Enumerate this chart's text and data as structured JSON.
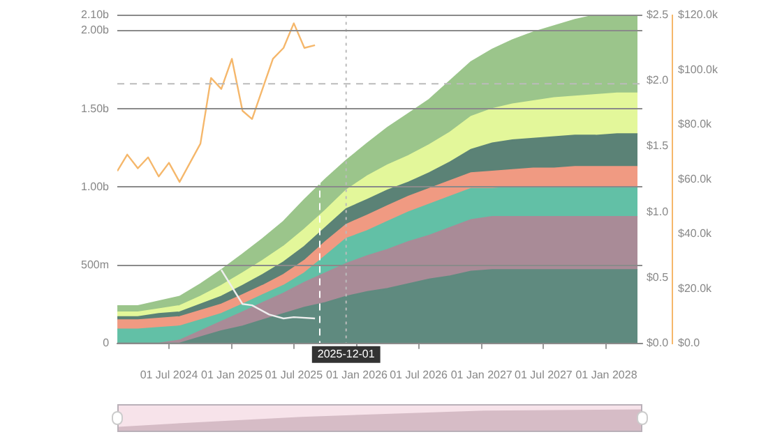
{
  "chart_data": {
    "type": "area",
    "stacked": true,
    "x": [
      "2024-02",
      "2024-04",
      "2024-06",
      "2024-08",
      "2024-10",
      "2024-12",
      "2025-02",
      "2025-04",
      "2025-06",
      "2025-08",
      "2025-10",
      "2025-12",
      "2026-02",
      "2026-04",
      "2026-06",
      "2026-08",
      "2026-10",
      "2026-12",
      "2027-02",
      "2027-04",
      "2027-06",
      "2027-08",
      "2027-10",
      "2027-12",
      "2028-02",
      "2028-04"
    ],
    "series": [
      {
        "color": "#5f8a7f",
        "values": [
          0,
          0,
          0,
          0,
          40000000,
          80000000,
          110000000,
          150000000,
          190000000,
          230000000,
          260000000,
          300000000,
          330000000,
          350000000,
          380000000,
          410000000,
          430000000,
          460000000,
          470000000,
          470000000,
          470000000,
          470000000,
          470000000,
          470000000,
          470000000,
          470000000
        ]
      },
      {
        "color": "#a98b97",
        "values": [
          0,
          0,
          0,
          20000000,
          40000000,
          60000000,
          90000000,
          110000000,
          130000000,
          160000000,
          190000000,
          210000000,
          230000000,
          250000000,
          270000000,
          280000000,
          310000000,
          330000000,
          340000000,
          340000000,
          340000000,
          340000000,
          340000000,
          340000000,
          340000000,
          340000000
        ]
      },
      {
        "color": "#62c0a6",
        "values": [
          90000000,
          90000000,
          100000000,
          90000000,
          70000000,
          50000000,
          50000000,
          50000000,
          50000000,
          60000000,
          110000000,
          160000000,
          160000000,
          180000000,
          190000000,
          200000000,
          200000000,
          200000000,
          180000000,
          190000000,
          190000000,
          190000000,
          190000000,
          190000000,
          190000000,
          190000000
        ]
      },
      {
        "color": "#f09a82",
        "values": [
          60000000,
          60000000,
          60000000,
          60000000,
          60000000,
          60000000,
          60000000,
          60000000,
          70000000,
          80000000,
          90000000,
          90000000,
          100000000,
          100000000,
          100000000,
          100000000,
          100000000,
          100000000,
          110000000,
          110000000,
          120000000,
          120000000,
          130000000,
          130000000,
          130000000,
          130000000
        ]
      },
      {
        "color": "#5b8276",
        "values": [
          20000000,
          20000000,
          30000000,
          30000000,
          40000000,
          50000000,
          60000000,
          70000000,
          80000000,
          90000000,
          90000000,
          100000000,
          100000000,
          100000000,
          90000000,
          100000000,
          120000000,
          150000000,
          180000000,
          190000000,
          190000000,
          200000000,
          200000000,
          200000000,
          210000000,
          210000000
        ]
      },
      {
        "color": "#e3f79a",
        "values": [
          30000000,
          30000000,
          30000000,
          40000000,
          50000000,
          70000000,
          80000000,
          90000000,
          100000000,
          110000000,
          110000000,
          120000000,
          150000000,
          160000000,
          170000000,
          180000000,
          190000000,
          210000000,
          220000000,
          230000000,
          240000000,
          250000000,
          250000000,
          260000000,
          260000000,
          260000000
        ]
      },
      {
        "color": "#9bc58b",
        "values": [
          40000000,
          40000000,
          50000000,
          60000000,
          80000000,
          100000000,
          120000000,
          140000000,
          160000000,
          190000000,
          200000000,
          190000000,
          210000000,
          240000000,
          270000000,
          290000000,
          330000000,
          350000000,
          380000000,
          410000000,
          440000000,
          460000000,
          490000000,
          510000000,
          500000000,
          500000000
        ]
      },
      {
        "type": "line",
        "axis": "y3",
        "color": "#f5b76b",
        "x": [
          "2024-02",
          "2024-03",
          "2024-04",
          "2024-05",
          "2024-06",
          "2024-07",
          "2024-08",
          "2024-10",
          "2024-11",
          "2024-12",
          "2025-01",
          "2025-02",
          "2025-03",
          "2025-05",
          "2025-06",
          "2025-07",
          "2025-08",
          "2025-09"
        ],
        "values": [
          63000,
          69000,
          64000,
          68000,
          61000,
          66000,
          59000,
          73000,
          97000,
          93000,
          104000,
          85000,
          82000,
          104000,
          108000,
          117000,
          108000,
          109000
        ]
      },
      {
        "type": "line",
        "axis": "y2",
        "color": "#eeeeee",
        "x": [
          "2024-12",
          "2025-02",
          "2025-03",
          "2025-04-20",
          "2025-06",
          "2025-07",
          "2025-09"
        ],
        "values": [
          0.56,
          0.3,
          0.29,
          0.22,
          0.19,
          0.2,
          0.19
        ]
      }
    ],
    "xlim": [
      "2024-02-01",
      "2028-04-15"
    ],
    "xticks": [
      {
        "value": "2024-07-01",
        "label": "01 Jul 2024"
      },
      {
        "value": "2025-01-01",
        "label": "01 Jan 2025"
      },
      {
        "value": "2025-07-01",
        "label": "01 Jul 2025"
      },
      {
        "value": "2026-01-01",
        "label": "01 Jan 2026"
      },
      {
        "value": "2026-07-01",
        "label": "01 Jul 2026"
      },
      {
        "value": "2027-01-01",
        "label": "01 Jan 2027"
      },
      {
        "value": "2027-07-01",
        "label": "01 Jul 2027"
      },
      {
        "value": "2028-01-01",
        "label": "01 Jan 2028"
      }
    ],
    "ylim": [
      0,
      2100000000
    ],
    "yticks": [
      0,
      {
        "value": 500000000,
        "label": "500m"
      },
      {
        "value": 1000000000,
        "label": "1.00b"
      },
      {
        "value": 1500000000,
        "label": "1.50b"
      },
      {
        "value": 2000000000,
        "label": "2.00b"
      },
      {
        "value": 2100000000,
        "label": "2.10b"
      }
    ],
    "y2lim": [
      0,
      2.5
    ],
    "y2ticks": [
      {
        "value": 0,
        "label": "$0.0"
      },
      {
        "value": 0.5,
        "label": "$0.5"
      },
      {
        "value": 1,
        "label": "$1.0"
      },
      {
        "value": 1.5,
        "label": "$1.5"
      },
      {
        "value": 2,
        "label": "$2.0"
      },
      {
        "value": 2.5,
        "label": "$2.5"
      }
    ],
    "y3lim": [
      0,
      120000
    ],
    "y3ticks": [
      {
        "value": 0,
        "label": "$0.0"
      },
      {
        "value": 20000,
        "label": "$20.0k"
      },
      {
        "value": 40000,
        "label": "$40.0k"
      },
      {
        "value": 60000,
        "label": "$60.0k"
      },
      {
        "value": 80000,
        "label": "$80.0k"
      },
      {
        "value": 100000,
        "label": "$100.0k"
      },
      {
        "value": 120000,
        "label": "$120.0k"
      }
    ],
    "grid": "y",
    "ref_lines": [
      {
        "axis": "x",
        "value": "2025-09-15",
        "color": "#ffffff",
        "line_style": "dashed"
      },
      {
        "axis": "x",
        "value": "2025-12-01",
        "label": "2025-12-01",
        "color": "#bbbbbb",
        "line_style": "dotted"
      },
      {
        "axis": "y",
        "value": 1660000000,
        "color": "#bbbbbb",
        "line_style": "dashed"
      }
    ]
  }
}
